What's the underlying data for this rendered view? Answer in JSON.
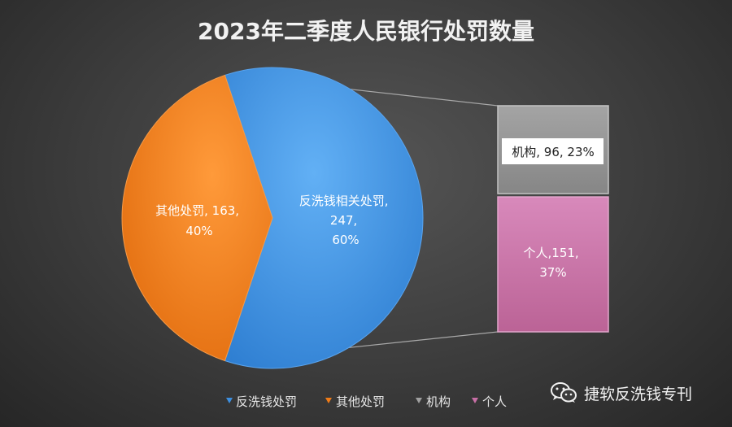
{
  "chart_data": {
    "type": "pie",
    "title": "2023年二季度人民银行处罚数量",
    "slices": [
      {
        "name": "反洗钱处罚",
        "value": 247,
        "percent": "60%",
        "color": "#3d8fe0"
      },
      {
        "name": "其他处罚",
        "value": 163,
        "percent": "40%",
        "color": "#f07c18"
      }
    ],
    "breakdown_of": "反洗钱处罚",
    "breakdown": [
      {
        "name": "机构",
        "value": 96,
        "percent": "23%",
        "color": "#8f8f8f"
      },
      {
        "name": "个人",
        "value": 151,
        "percent": "37%",
        "color": "#c86fa6"
      }
    ],
    "labels": {
      "aml": [
        "反洗钱相关处罚,",
        "247,",
        "60%"
      ],
      "other": [
        "其他处罚, 163,",
        "40%"
      ],
      "inst": "机构, 96, 23%",
      "indiv": [
        "个人,151,",
        "37%"
      ]
    },
    "legend": {
      "position": "bottom",
      "items": [
        {
          "name": "反洗钱处罚",
          "color": "#3d8fe0"
        },
        {
          "name": "其他处罚",
          "color": "#f07c18"
        },
        {
          "name": "机构",
          "color": "#8f8f8f"
        },
        {
          "name": "个人",
          "color": "#c86fa6"
        }
      ]
    }
  },
  "watermark": {
    "text": "捷软反洗钱专刊",
    "icon": "wechat-icon"
  }
}
